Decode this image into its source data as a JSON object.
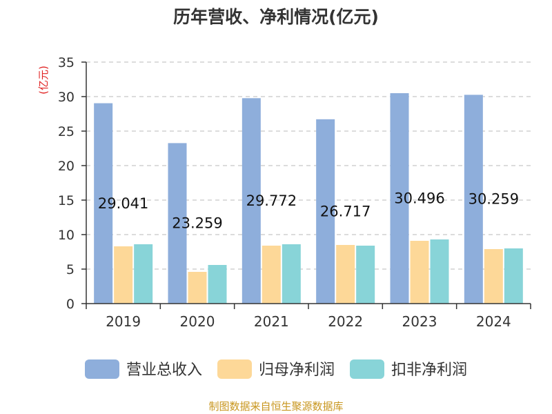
{
  "chart_data": {
    "type": "bar",
    "title": "历年营收、净利情况(亿元)",
    "ylabel": "(亿元)",
    "categories": [
      "2019",
      "2020",
      "2021",
      "2022",
      "2023",
      "2024"
    ],
    "series": [
      {
        "name": "营业总收入",
        "values": [
          29.041,
          23.259,
          29.772,
          26.717,
          30.496,
          30.259
        ],
        "color": "#8eaedb"
      },
      {
        "name": "归母净利润",
        "values": [
          8.3,
          4.6,
          8.4,
          8.5,
          9.1,
          7.9
        ],
        "color": "#fdd898"
      },
      {
        "name": "扣非净利润",
        "values": [
          8.6,
          5.6,
          8.6,
          8.4,
          9.3,
          8.0
        ],
        "color": "#88d4d8"
      }
    ],
    "data_labels": [
      "29.041",
      "23.259",
      "29.772",
      "26.717",
      "30.496",
      "30.259"
    ],
    "yticks": [
      0,
      5,
      10,
      15,
      20,
      25,
      30,
      35
    ],
    "ylim": [
      0,
      35
    ],
    "grid": true,
    "legend_position": "bottom"
  },
  "source": "制图数据来自恒生聚源数据库"
}
